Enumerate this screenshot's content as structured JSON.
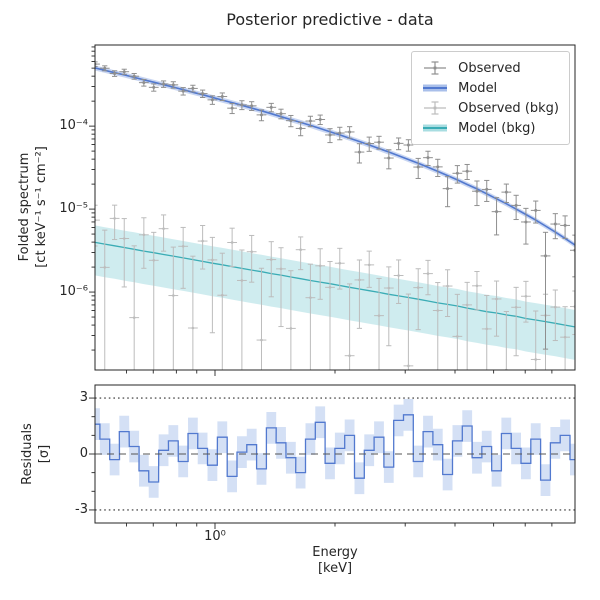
{
  "figure": {
    "title": "Posterior predictive - data",
    "background": "#ffffff"
  },
  "axes": {
    "top": {
      "ylabel_line1": "Folded spectrum",
      "ylabel_line2": "[ct keV⁻¹ s⁻¹ cm⁻²]",
      "ytick_labels": [
        "10⁻⁴",
        "10⁻⁵",
        "10⁻⁶"
      ],
      "ytick_values": [
        0.0001,
        1e-05,
        1e-06
      ],
      "xlim": [
        0.5,
        8
      ],
      "ylim": [
        1.15e-07,
        0.00095
      ]
    },
    "bottom": {
      "ylabel_line1": "Residuals",
      "ylabel_line2": "[σ]",
      "ytick_labels": [
        "3",
        "0",
        "-3"
      ],
      "ytick_values": [
        3,
        0,
        -3
      ],
      "xlabel_line1": "Energy",
      "xlabel_line2": "[keV]",
      "xtick_labels": [
        "10⁰"
      ],
      "xtick_values": [
        1
      ],
      "dotted_guides_sigma": [
        3,
        -3
      ],
      "dashed_guide_sigma": 0
    }
  },
  "legend": {
    "items": [
      {
        "label": "Observed",
        "type": "errorbar",
        "color": "#8f8f8f"
      },
      {
        "label": "Model",
        "type": "band-line",
        "line_color": "#5279cf",
        "band_color": "#a9bfea"
      },
      {
        "label": "Observed (bkg)",
        "type": "errorbar",
        "color": "#bcbcbc"
      },
      {
        "label": "Model (bkg)",
        "type": "band-line",
        "line_color": "#3aacb5",
        "band_color": "#a8dde1"
      }
    ]
  },
  "chart_data": {
    "type": "line",
    "title": "Posterior predictive - data",
    "xlabel": "Energy [keV]",
    "ylabel_top": "Folded spectrum [ct keV⁻¹ s⁻¹ cm⁻²]",
    "ylabel_bottom": "Residuals [σ]",
    "x_scale": "log",
    "y_scale_top": "log",
    "xlim": [
      0.5,
      8
    ],
    "ylim_top": [
      1.15e-07,
      0.00095
    ],
    "ylim_bottom": [
      -3.7,
      3.7
    ],
    "legend_position": "upper right",
    "x_keV": [
      0.5,
      0.529,
      0.56,
      0.592,
      0.627,
      0.663,
      0.702,
      0.743,
      0.786,
      0.832,
      0.88,
      0.931,
      0.985,
      1.043,
      1.104,
      1.168,
      1.236,
      1.308,
      1.384,
      1.464,
      1.55,
      1.64,
      1.735,
      1.836,
      1.943,
      2.056,
      2.176,
      2.303,
      2.437,
      2.579,
      2.729,
      2.888,
      3.056,
      3.234,
      3.422,
      3.621,
      3.832,
      4.055,
      4.291,
      4.541,
      4.805,
      5.085,
      5.381,
      5.694,
      6.025,
      6.376,
      6.747,
      7.14,
      7.555,
      7.995
    ],
    "model_flux": [
      0.000503,
      0.000471,
      0.000441,
      0.000414,
      0.000387,
      0.000362,
      0.000338,
      0.000316,
      0.000295,
      0.000275,
      0.000256,
      0.000239,
      0.000222,
      0.000206,
      0.000192,
      0.000178,
      0.000165,
      0.000153,
      0.000141,
      0.00013,
      0.00012,
      0.000111,
      0.000102,
      9.35e-05,
      8.57e-05,
      7.84e-05,
      7.16e-05,
      6.52e-05,
      5.93e-05,
      5.38e-05,
      4.87e-05,
      4.4e-05,
      3.96e-05,
      3.56e-05,
      3.19e-05,
      2.85e-05,
      2.53e-05,
      2.25e-05,
      1.98e-05,
      1.75e-05,
      1.53e-05,
      1.33e-05,
      1.16e-05,
      1e-05,
      8.6e-06,
      7.36e-06,
      6.26e-06,
      5.28e-06,
      4.43e-06,
      3.69e-06
    ],
    "model_band_frac": 0.07,
    "obs_frac_err": [
      0.07,
      0.073,
      0.076,
      0.078,
      0.081,
      0.085,
      0.088,
      0.091,
      0.095,
      0.099,
      0.102,
      0.106,
      0.11,
      0.115,
      0.119,
      0.124,
      0.129,
      0.134,
      0.139,
      0.144,
      0.15,
      0.155,
      0.161,
      0.168,
      0.174,
      0.181,
      0.188,
      0.195,
      0.203,
      0.211,
      0.219,
      0.227,
      0.236,
      0.245,
      0.255,
      0.265,
      0.275,
      0.286,
      0.297,
      0.308,
      0.32,
      0.333,
      0.346,
      0.359,
      0.373,
      0.388,
      0.403,
      0.418,
      0.435,
      0.451
    ],
    "obs_residual_sigma": [
      1.6,
      0.8,
      -0.3,
      1.2,
      0.4,
      -0.9,
      -1.5,
      0.2,
      0.7,
      -0.4,
      1.1,
      0.3,
      -0.6,
      0.9,
      -1.2,
      0.1,
      0.5,
      -0.8,
      1.4,
      0.6,
      -0.2,
      -1.0,
      0.8,
      1.7,
      -0.5,
      0.3,
      1.0,
      -1.3,
      0.2,
      0.9,
      -0.7,
      1.8,
      2.1,
      -0.4,
      1.2,
      0.5,
      -1.1,
      0.7,
      1.5,
      -0.2,
      0.4,
      -0.9,
      1.1,
      0.3,
      -0.5,
      0.8,
      -1.4,
      0.6,
      1.0,
      -0.3
    ],
    "residual_band_halfwidth": 0.85,
    "bkg_model_flux": [
      3.97e-06,
      3.78e-06,
      3.61e-06,
      3.44e-06,
      3.28e-06,
      3.12e-06,
      2.98e-06,
      2.84e-06,
      2.71e-06,
      2.58e-06,
      2.46e-06,
      2.34e-06,
      2.23e-06,
      2.13e-06,
      2.03e-06,
      1.93e-06,
      1.84e-06,
      1.76e-06,
      1.67e-06,
      1.6e-06,
      1.52e-06,
      1.45e-06,
      1.38e-06,
      1.32e-06,
      1.26e-06,
      1.2e-06,
      1.14e-06,
      1.09e-06,
      1.04e-06,
      9.9e-07,
      9.4e-07,
      9e-07,
      8.6e-07,
      8.2e-07,
      7.8e-07,
      7.4e-07,
      7.1e-07,
      6.8e-07,
      6.4e-07,
      6.1e-07,
      5.8e-07,
      5.6e-07,
      5.3e-07,
      5.1e-07,
      4.8e-07,
      4.6e-07,
      4.4e-07,
      4.2e-07,
      4e-07,
      3.8e-07
    ],
    "bkg_band_frac": 0.6,
    "bkg_frac_err": 0.95,
    "bkg_noise_sigma": [
      0.9,
      -0.5,
      1.2,
      0.3,
      -1.0,
      0.6,
      -0.2,
      1.1,
      -0.7,
      0.4,
      -1.2,
      0.8,
      0.1,
      -0.6,
      1.0,
      -0.3,
      0.7,
      -1.1,
      0.5,
      0.2,
      -0.8,
      1.3,
      -0.4,
      0.6,
      -0.1,
      0.9,
      -0.9,
      0.3,
      1.1,
      -0.5,
      0.2,
      0.8,
      -1.0,
      0.4,
      1.2,
      -0.2,
      0.7,
      -0.6,
      0.1,
      1.0,
      -0.4,
      0.5,
      -1.1,
      0.3,
      0.9,
      -0.7,
      0.2,
      0.6,
      -0.3,
      0.8
    ],
    "colors": {
      "obs": "#8f8f8f",
      "obs_bkg": "#bcbcbc",
      "model_line": "#5279cf",
      "model_band": "#9db5e8",
      "bkg_line": "#3aacb5",
      "bkg_band": "#a8dde1",
      "resid_line": "#5279cf",
      "resid_band": "#a9c1ec",
      "frame": "#262626",
      "zero_dash": "#555555",
      "sigma_dots": "#555555"
    }
  }
}
